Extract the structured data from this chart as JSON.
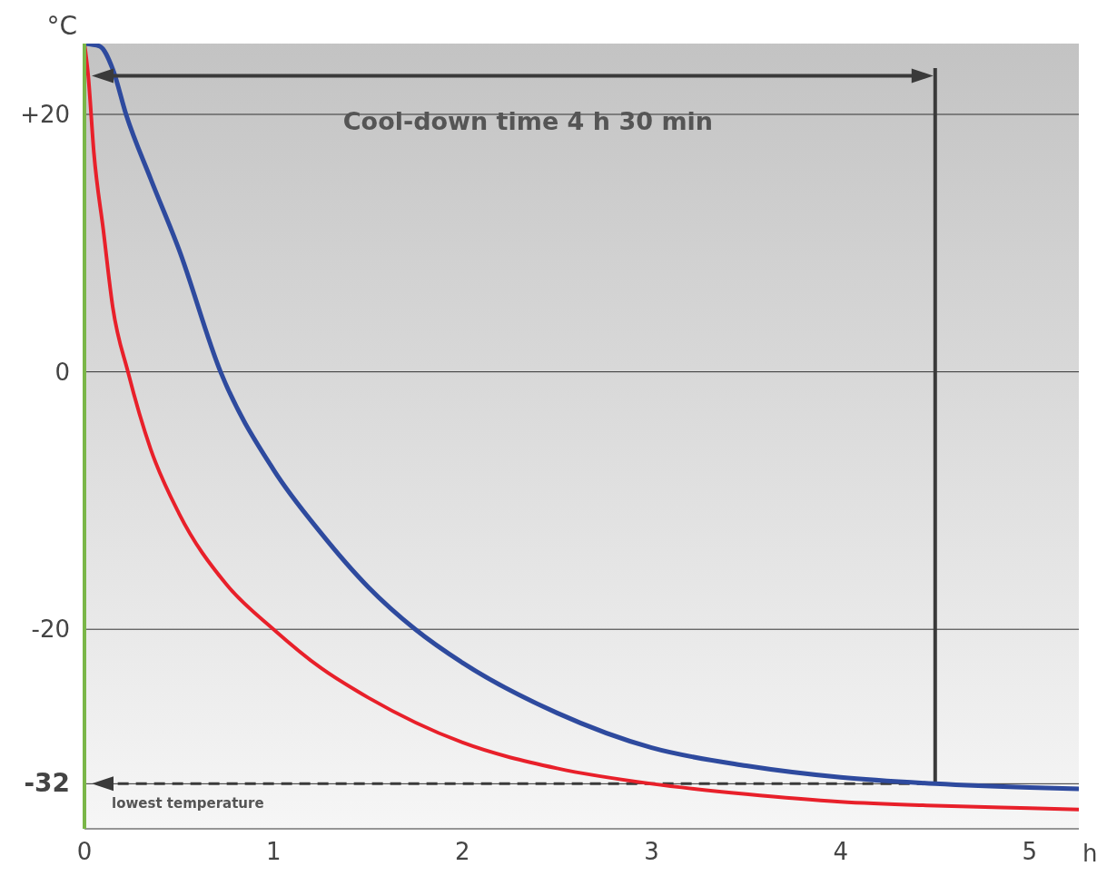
{
  "chart_data": {
    "type": "line",
    "xlabel": "h",
    "ylabel": "°C",
    "xlim": [
      0,
      5.26
    ],
    "xticks": [
      0,
      1,
      2,
      3,
      4,
      5
    ],
    "ylim": [
      -35.5,
      25.5
    ],
    "yticks": [
      {
        "value": 20,
        "label": "+20"
      },
      0,
      -20,
      -32
    ],
    "grid": true,
    "line_style": "solid",
    "marker": "none",
    "series": [
      {
        "color": "#e8202a",
        "x": [
          0,
          0.02,
          0.05,
          0.1,
          0.15,
          0.23,
          0.35,
          0.5,
          0.75,
          1,
          1.25,
          1.5,
          2,
          2.5,
          3,
          3.5,
          4,
          4.5,
          5,
          5.26
        ],
        "values": [
          25.5,
          23,
          17,
          11,
          5,
          0,
          -6,
          -11,
          -16.5,
          -20,
          -23,
          -25.3,
          -28.8,
          -30.8,
          -32,
          -32.8,
          -33.4,
          -33.7,
          -33.9,
          -34
        ]
      },
      {
        "color": "#2e4a9e",
        "x": [
          0,
          0.08,
          0.15,
          0.22,
          0.35,
          0.5,
          0.72,
          1,
          1.25,
          1.5,
          1.75,
          2,
          2.5,
          3,
          3.5,
          4,
          4.5,
          5,
          5.26
        ],
        "values": [
          25.5,
          25.3,
          23.5,
          20,
          15,
          9.5,
          0,
          -7.6,
          -12.5,
          -16.7,
          -20,
          -22.6,
          -26.5,
          -29.2,
          -30.6,
          -31.5,
          -32,
          -32.3,
          -32.4
        ]
      }
    ],
    "ref_lines": [
      {
        "axis": "y",
        "value": -32,
        "label": "lowest temperature",
        "line_style": "dashed",
        "color": "#3a3a3a"
      },
      {
        "axis": "x",
        "value": 4.5,
        "line_style": "solid",
        "color": "#3a3a3a"
      }
    ],
    "annotations": [
      "Cool-down time 4 h 30 min"
    ]
  }
}
